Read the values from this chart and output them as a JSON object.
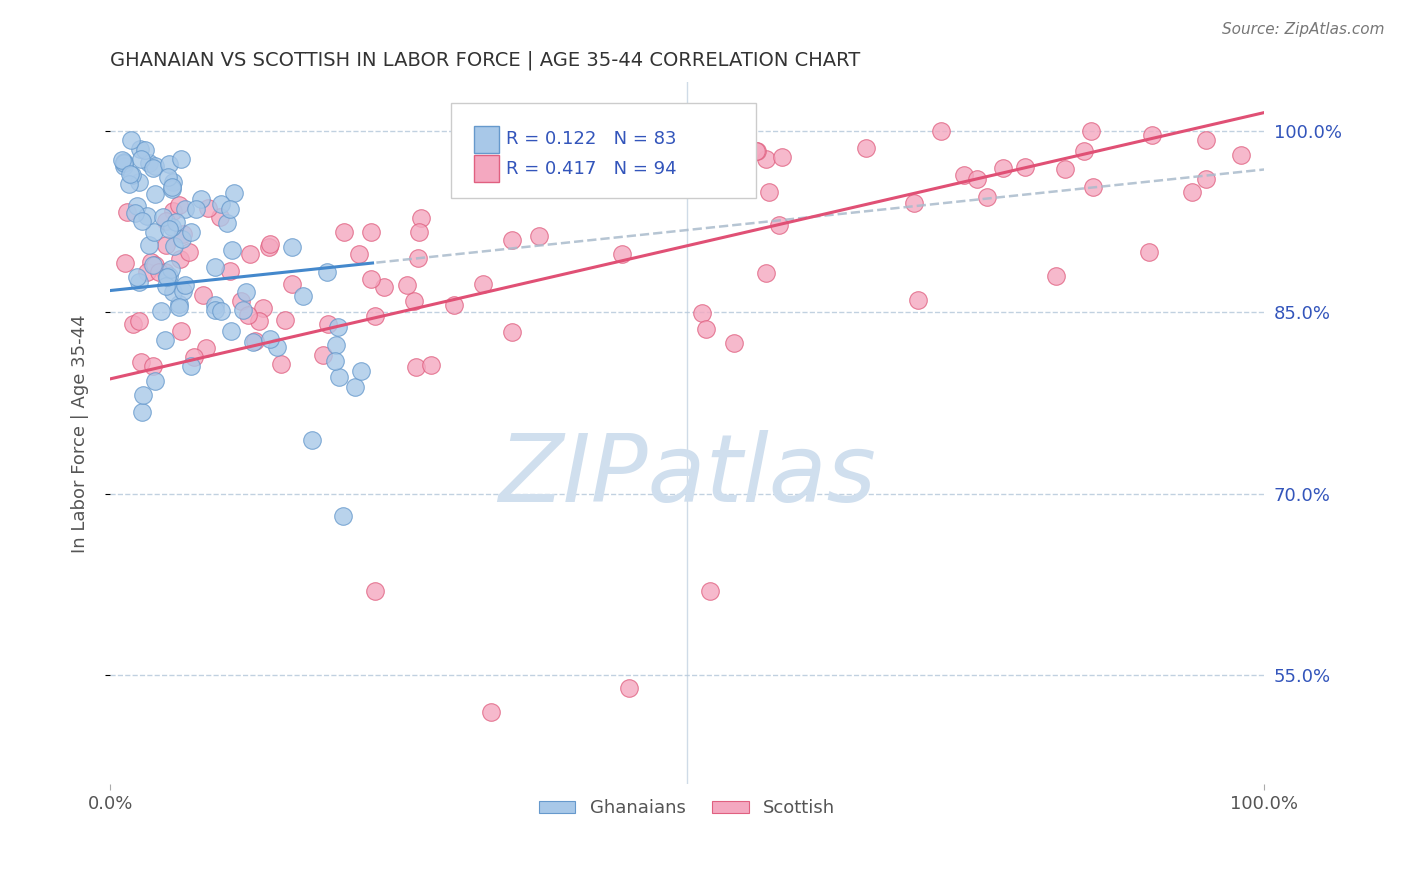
{
  "title": "GHANAIAN VS SCOTTISH IN LABOR FORCE | AGE 35-44 CORRELATION CHART",
  "source_text": "Source: ZipAtlas.com",
  "ylabel": "In Labor Force | Age 35-44",
  "xlim": [
    0.0,
    1.0
  ],
  "ylim": [
    0.46,
    1.04
  ],
  "yticks": [
    0.55,
    0.7,
    0.85,
    1.0
  ],
  "ytick_labels": [
    "55.0%",
    "70.0%",
    "85.0%",
    "100.0%"
  ],
  "ghanaian_R": 0.122,
  "ghanaian_N": 83,
  "scottish_R": 0.417,
  "scottish_N": 94,
  "ghanaian_color": "#A8C8E8",
  "scottish_color": "#F4A8C0",
  "ghanaian_edge_color": "#6699CC",
  "scottish_edge_color": "#E06080",
  "ghanaian_line_color": "#4488CC",
  "scottish_line_color": "#E05075",
  "legend_R_color": "#3355BB",
  "watermark_color": "#D0DFEE",
  "background_color": "#FFFFFF",
  "grid_color": "#BBCCDD",
  "title_color": "#333333",
  "axis_label_color": "#555555",
  "tick_label_color": "#3355BB"
}
